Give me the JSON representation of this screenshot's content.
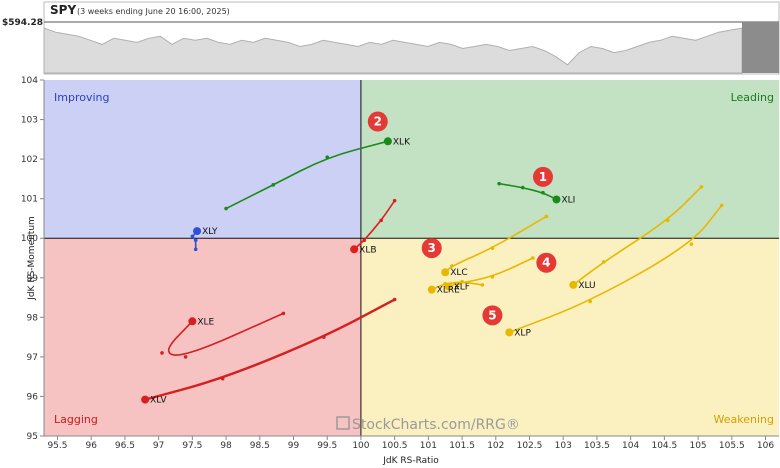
{
  "header": {
    "symbol": "SPY",
    "subtitle": "(3 weeks ending June 20 16:00, 2025)",
    "price": "$594.28"
  },
  "chart_data": {
    "type": "scatter",
    "xlabel": "JdK RS-Ratio",
    "ylabel": "JdK RS-Momentum",
    "xlim": [
      95.3,
      106.2
    ],
    "ylim": [
      95.0,
      104.0
    ],
    "x_ticks": [
      95.5,
      96,
      96.5,
      97,
      97.5,
      98,
      98.5,
      99,
      99.5,
      100,
      100.5,
      101,
      101.5,
      102,
      102.5,
      103,
      103.5,
      104,
      104.5,
      105,
      105.5,
      106
    ],
    "x_tick_labels": [
      "95.5",
      "96",
      "96.5",
      "97",
      "97.5",
      "98",
      "98.5",
      "99",
      "99.5",
      "100",
      "100.5",
      "101",
      "101.5",
      "102",
      "102.5",
      "103",
      "103.5",
      "104",
      "104.5",
      "105",
      "105.5",
      "106"
    ],
    "y_ticks": [
      95,
      96,
      97,
      98,
      99,
      100,
      101,
      102,
      103,
      104
    ],
    "y_tick_labels": [
      "95",
      "96",
      "97",
      "98",
      "99",
      "100",
      "101",
      "102",
      "103",
      "104"
    ],
    "center": [
      100,
      100
    ],
    "quadrants": [
      {
        "name": "Improving",
        "color": "#2b3fc8",
        "fill": "#cbd0f4"
      },
      {
        "name": "Leading",
        "color": "#1a7a1a",
        "fill": "#c3e1c3"
      },
      {
        "name": "Lagging",
        "color": "#c41e1e",
        "fill": "#f6c2c2"
      },
      {
        "name": "Weakening",
        "color": "#d4a000",
        "fill": "#fbf0c0"
      }
    ],
    "series": [
      {
        "name": "XLK",
        "color": "#1a8a1a",
        "points": [
          [
            98.0,
            100.75
          ],
          [
            98.7,
            101.35
          ],
          [
            99.5,
            102.05
          ],
          [
            100.4,
            102.45
          ]
        ]
      },
      {
        "name": "XLI",
        "color": "#1a8a1a",
        "points": [
          [
            102.05,
            101.38
          ],
          [
            102.4,
            101.28
          ],
          [
            102.7,
            101.15
          ],
          [
            102.9,
            100.98
          ]
        ]
      },
      {
        "name": "XLY",
        "color": "#3050d8",
        "points": [
          [
            97.55,
            99.72
          ],
          [
            97.55,
            99.95
          ],
          [
            97.5,
            100.05
          ],
          [
            97.57,
            100.18
          ]
        ]
      },
      {
        "name": "XLB",
        "color": "#e01e1e",
        "points": [
          [
            100.5,
            100.95
          ],
          [
            100.3,
            100.45
          ],
          [
            100.05,
            99.95
          ],
          [
            99.9,
            99.72
          ]
        ]
      },
      {
        "name": "XLE",
        "color": "#d42020",
        "points": [
          [
            98.85,
            98.1
          ],
          [
            97.4,
            97.0
          ],
          [
            97.05,
            97.1
          ],
          [
            97.5,
            97.9
          ]
        ]
      },
      {
        "name": "XLV",
        "color": "#d42020",
        "points": [
          [
            100.5,
            98.45
          ],
          [
            99.45,
            97.5
          ],
          [
            97.95,
            96.45
          ],
          [
            96.8,
            95.92
          ]
        ]
      },
      {
        "name": "XLC",
        "color": "#e8b800",
        "points": [
          [
            102.75,
            100.55
          ],
          [
            101.95,
            99.75
          ],
          [
            101.35,
            99.3
          ],
          [
            101.25,
            99.14
          ]
        ]
      },
      {
        "name": "XLF",
        "color": "#e8b800",
        "points": [
          [
            102.55,
            99.5
          ],
          [
            101.95,
            99.02
          ],
          [
            101.45,
            98.86
          ],
          [
            101.3,
            98.78
          ]
        ]
      },
      {
        "name": "XLRE",
        "color": "#e8b800",
        "points": [
          [
            101.8,
            98.82
          ],
          [
            101.5,
            98.9
          ],
          [
            101.25,
            98.85
          ],
          [
            101.05,
            98.7
          ]
        ]
      },
      {
        "name": "XLU",
        "color": "#e8b800",
        "points": [
          [
            105.05,
            101.3
          ],
          [
            104.55,
            100.45
          ],
          [
            103.6,
            99.4
          ],
          [
            103.15,
            98.82
          ]
        ]
      },
      {
        "name": "XLP",
        "color": "#e8b800",
        "points": [
          [
            105.35,
            100.83
          ],
          [
            104.9,
            99.85
          ],
          [
            103.4,
            98.4
          ],
          [
            102.2,
            97.62
          ]
        ]
      }
    ],
    "annotations": [
      {
        "label": "1",
        "x": 102.7,
        "y": 101.55
      },
      {
        "label": "2",
        "x": 100.25,
        "y": 102.95
      },
      {
        "label": "3",
        "x": 101.05,
        "y": 99.75
      },
      {
        "label": "4",
        "x": 102.75,
        "y": 99.38
      },
      {
        "label": "5",
        "x": 101.95,
        "y": 98.05
      }
    ],
    "watermark": "StockCharts.com/RRG®",
    "price_series": [
      42,
      40,
      39,
      38,
      36,
      34,
      37,
      36,
      35,
      37,
      38,
      34,
      37,
      36,
      37,
      35,
      34,
      36,
      35,
      37,
      36,
      35,
      33,
      34,
      36,
      35,
      34,
      33,
      35,
      34,
      36,
      35,
      34,
      33,
      35,
      34,
      32,
      33,
      34,
      33,
      31,
      32,
      33,
      31,
      28,
      24,
      30,
      33,
      32,
      30,
      31,
      33,
      35,
      36,
      38,
      37,
      36,
      38,
      40,
      41,
      42
    ]
  }
}
